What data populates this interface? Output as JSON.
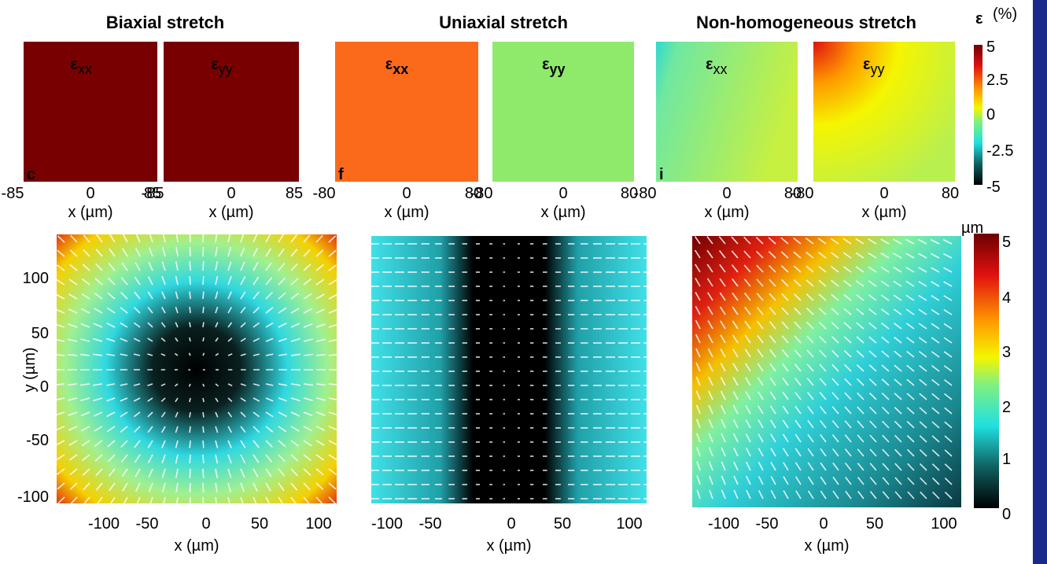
{
  "titles": [
    "Biaxial stretch",
    "Uniaxial stretch",
    "Non-homogeneous stretch"
  ],
  "strain_panels": [
    {
      "symbol": "ε",
      "subscript": "xx",
      "letter": "c",
      "ticks": [
        "-85",
        "0",
        "85"
      ],
      "x_label": "x (µm)"
    },
    {
      "symbol": "ε",
      "subscript": "yy",
      "ticks": [
        "-85",
        "0",
        "85"
      ],
      "x_label": "x (µm)"
    },
    {
      "symbol": "ε",
      "subscript": "xx",
      "letter": "f",
      "ticks": [
        "-80",
        "0",
        "80"
      ],
      "x_label": "x (µm)"
    },
    {
      "symbol": "ε",
      "subscript": "yy",
      "ticks": [
        "-80",
        "0",
        "80"
      ],
      "x_label": "x (µm)"
    },
    {
      "symbol": "ε",
      "subscript": "xx",
      "letter": "i",
      "ticks": [
        "-80",
        "0",
        "80"
      ],
      "x_label": "x (µm)"
    },
    {
      "symbol": "ε",
      "subscript": "yy",
      "ticks": [
        "-80",
        "0",
        "80"
      ],
      "x_label": "x (µm)"
    }
  ],
  "strain_colorbar": {
    "symbol": "ε",
    "unit": "(%)",
    "ticks": [
      "5",
      "2.5",
      "0",
      "-2.5",
      "-5"
    ]
  },
  "displacement_panels": {
    "x_ticks": [
      "-100",
      "-50",
      "0",
      "50",
      "100"
    ],
    "x_label": "x (µm)",
    "y_ticks": [
      "100",
      "50",
      "0",
      "-50",
      "-100"
    ],
    "y_label": "y (µm)"
  },
  "displacement_colorbar": {
    "unit": "µm",
    "ticks": [
      "5",
      "4",
      "3",
      "2",
      "1",
      "0"
    ]
  }
}
